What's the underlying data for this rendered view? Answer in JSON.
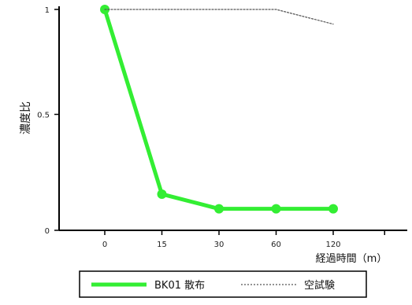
{
  "chart_data": {
    "type": "line",
    "title": "",
    "xlabel": "経過時間（m）",
    "ylabel": "濃度比",
    "x": [
      0,
      15,
      30,
      60,
      120
    ],
    "x_tick_labels": [
      "0",
      "15",
      "30",
      "60",
      "120"
    ],
    "y_ticks": [
      0,
      0.5,
      1
    ],
    "y_tick_labels": [
      "0",
      "0.5",
      "1"
    ],
    "ylim": [
      0,
      1
    ],
    "grid": false,
    "legend_position": "bottom",
    "series": [
      {
        "name": "BK01 散布",
        "values": [
          1.0,
          0.12,
          0.05,
          0.05,
          0.05
        ],
        "color": "#33ee33",
        "style": "solid",
        "markers": true
      },
      {
        "name": "空試験",
        "values": [
          1.0,
          1.0,
          1.0,
          1.0,
          0.93
        ],
        "color": "#555555",
        "style": "dotted",
        "markers": false
      }
    ]
  }
}
